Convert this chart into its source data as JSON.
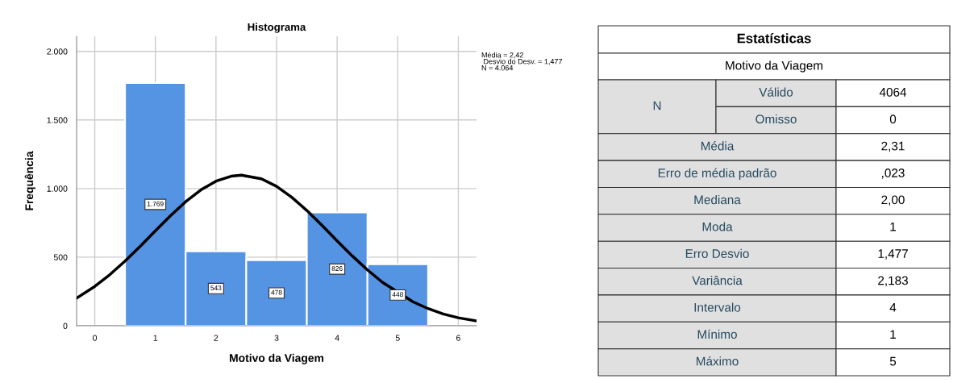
{
  "chart_data": [
    {
      "type": "histogram",
      "title": "Histograma",
      "xlabel": "Motivo da Viagem",
      "ylabel": "Frequência",
      "bins": [
        0.5,
        1.5,
        2.5,
        3.5,
        4.5,
        5.5
      ],
      "values": [
        1769,
        543,
        478,
        826,
        448
      ],
      "value_labels": [
        "1.769",
        "543",
        "478",
        "826",
        "448"
      ],
      "color": "#5593e3",
      "series": [
        {
          "type": "line",
          "color": "#000000",
          "x": [
            -0.3,
            0,
            0.25,
            0.5,
            0.75,
            1,
            1.25,
            1.5,
            1.75,
            2,
            2.25,
            2.42,
            2.75,
            3,
            3.25,
            3.5,
            3.75,
            4,
            4.25,
            4.5,
            4.75,
            5.25,
            5.5,
            5.75,
            6,
            6.3
          ],
          "values": [
            201,
            287,
            373,
            472,
            579,
            692,
            802,
            904,
            990,
            1054,
            1090,
            1098,
            1071,
            1016,
            937,
            840,
            732,
            619,
            509,
            407,
            316,
            175,
            125,
            86,
            58,
            35
          ]
        }
      ],
      "xlim": [
        -0.3,
        6.3
      ],
      "xticks": [
        0,
        1,
        2,
        3,
        4,
        5,
        6
      ],
      "ylim": [
        0,
        2110
      ],
      "yticks": [
        {
          "value": 0,
          "label": "0"
        },
        {
          "value": 500,
          "label": "500"
        },
        {
          "value": 1000,
          "label": "1.000"
        },
        {
          "value": 1500,
          "label": "1.500"
        },
        {
          "value": 2000,
          "label": "2.000"
        }
      ],
      "grid": true,
      "annotations": [
        "Média = 2,42",
        " Desvio do Desv. = 1,477",
        "N = 4.064"
      ]
    },
    {
      "type": "other",
      "title": "Estatísticas",
      "subtitle": "Motivo da Viagem",
      "annotations": [
        "N",
        "Válido",
        "4064",
        "Omisso",
        "0",
        "Média",
        "2,31",
        "Erro de média padrão",
        ",023",
        "Mediana",
        "2,00",
        "Moda",
        "1",
        "Erro Desvio",
        "1,477",
        "Variância",
        "2,183",
        "Intervalo",
        "4",
        "Mínimo",
        "1",
        "Máximo",
        "5"
      ]
    }
  ]
}
